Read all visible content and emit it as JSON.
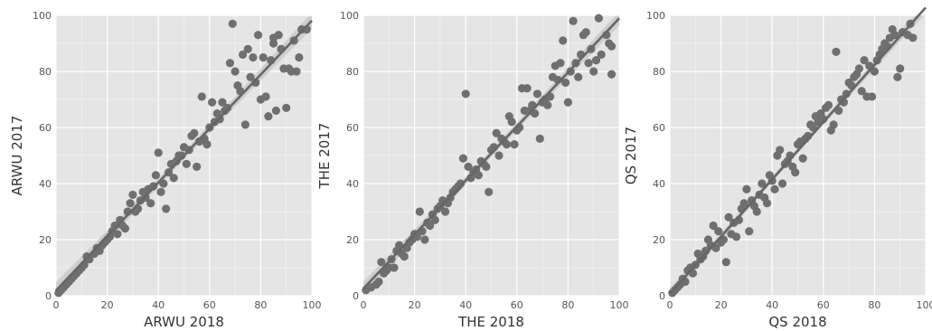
{
  "style": {
    "panel_bg": "#e5e5e5",
    "grid": "#ffffff",
    "point": "#6f6f6f",
    "line": "#666666",
    "band": "#c8c8c8"
  },
  "chart_data": [
    {
      "type": "scatter",
      "title": "",
      "xlabel": "ARWU 2018",
      "ylabel": "ARWU 2017",
      "xlim": [
        0,
        100
      ],
      "ylim": [
        0,
        100
      ],
      "xticks": [
        "0",
        "20",
        "40",
        "60",
        "80",
        "100"
      ],
      "yticks": [
        "0",
        "20",
        "40",
        "60",
        "80",
        "100"
      ],
      "grid": true,
      "regression_line": true,
      "points": [
        [
          1,
          1
        ],
        [
          2,
          2
        ],
        [
          3,
          3
        ],
        [
          4,
          4
        ],
        [
          5,
          5
        ],
        [
          6,
          6
        ],
        [
          7,
          7
        ],
        [
          8,
          8
        ],
        [
          9,
          9
        ],
        [
          10,
          10
        ],
        [
          11,
          11
        ],
        [
          12,
          14
        ],
        [
          13,
          13
        ],
        [
          15,
          15
        ],
        [
          16,
          17
        ],
        [
          17,
          16
        ],
        [
          18,
          18
        ],
        [
          19,
          19
        ],
        [
          20,
          20
        ],
        [
          21,
          21
        ],
        [
          22,
          23
        ],
        [
          23,
          25
        ],
        [
          24,
          22
        ],
        [
          25,
          27
        ],
        [
          26,
          25
        ],
        [
          27,
          24
        ],
        [
          28,
          30
        ],
        [
          29,
          33
        ],
        [
          30,
          36
        ],
        [
          31,
          30
        ],
        [
          32,
          31
        ],
        [
          33,
          34
        ],
        [
          34,
          37
        ],
        [
          35,
          35
        ],
        [
          36,
          38
        ],
        [
          37,
          33
        ],
        [
          38,
          39
        ],
        [
          39,
          43
        ],
        [
          40,
          51
        ],
        [
          41,
          37
        ],
        [
          42,
          40
        ],
        [
          43,
          31
        ],
        [
          44,
          44
        ],
        [
          45,
          47
        ],
        [
          46,
          42
        ],
        [
          47,
          48
        ],
        [
          48,
          50
        ],
        [
          49,
          50
        ],
        [
          50,
          53
        ],
        [
          51,
          47
        ],
        [
          52,
          52
        ],
        [
          53,
          57
        ],
        [
          54,
          58
        ],
        [
          55,
          46
        ],
        [
          56,
          55
        ],
        [
          57,
          71
        ],
        [
          58,
          56
        ],
        [
          59,
          54
        ],
        [
          60,
          60
        ],
        [
          61,
          69
        ],
        [
          62,
          62
        ],
        [
          63,
          65
        ],
        [
          64,
          63
        ],
        [
          65,
          69
        ],
        [
          66,
          66
        ],
        [
          67,
          67
        ],
        [
          68,
          83
        ],
        [
          69,
          97
        ],
        [
          70,
          80
        ],
        [
          71,
          75
        ],
        [
          72,
          73
        ],
        [
          73,
          86
        ],
        [
          74,
          61
        ],
        [
          75,
          88
        ],
        [
          76,
          78
        ],
        [
          77,
          85
        ],
        [
          78,
          76
        ],
        [
          79,
          93
        ],
        [
          80,
          70
        ],
        [
          81,
          85
        ],
        [
          82,
          71
        ],
        [
          83,
          64
        ],
        [
          84,
          84
        ],
        [
          85,
          92
        ],
        [
          86,
          66
        ],
        [
          87,
          93
        ],
        [
          88,
          88
        ],
        [
          89,
          81
        ],
        [
          90,
          67
        ],
        [
          91,
          81
        ],
        [
          92,
          80
        ],
        [
          93,
          91
        ],
        [
          94,
          80
        ],
        [
          95,
          85
        ],
        [
          96,
          95
        ],
        [
          98,
          95
        ],
        [
          85,
          90
        ]
      ]
    },
    {
      "type": "scatter",
      "title": "",
      "xlabel": "THE 2018",
      "ylabel": "THE 2017",
      "xlim": [
        0,
        100
      ],
      "ylim": [
        0,
        100
      ],
      "xticks": [
        "0",
        "20",
        "40",
        "60",
        "80",
        "100"
      ],
      "yticks": [
        "0",
        "20",
        "40",
        "60",
        "80",
        "100"
      ],
      "grid": true,
      "regression_line": true,
      "points": [
        [
          1,
          2
        ],
        [
          3,
          3
        ],
        [
          5,
          4
        ],
        [
          6,
          5
        ],
        [
          7,
          12
        ],
        [
          8,
          8
        ],
        [
          9,
          9
        ],
        [
          10,
          10
        ],
        [
          11,
          13
        ],
        [
          12,
          10
        ],
        [
          13,
          16
        ],
        [
          14,
          18
        ],
        [
          15,
          15
        ],
        [
          16,
          14
        ],
        [
          17,
          17
        ],
        [
          18,
          19
        ],
        [
          19,
          20
        ],
        [
          20,
          22
        ],
        [
          21,
          21
        ],
        [
          22,
          30
        ],
        [
          23,
          23
        ],
        [
          24,
          20
        ],
        [
          25,
          26
        ],
        [
          26,
          25
        ],
        [
          27,
          29
        ],
        [
          28,
          27
        ],
        [
          29,
          31
        ],
        [
          30,
          32
        ],
        [
          31,
          34
        ],
        [
          32,
          30
        ],
        [
          33,
          33
        ],
        [
          34,
          35
        ],
        [
          35,
          37
        ],
        [
          36,
          38
        ],
        [
          37,
          39
        ],
        [
          38,
          40
        ],
        [
          39,
          49
        ],
        [
          40,
          72
        ],
        [
          41,
          46
        ],
        [
          42,
          42
        ],
        [
          43,
          44
        ],
        [
          44,
          45
        ],
        [
          45,
          43
        ],
        [
          46,
          48
        ],
        [
          47,
          47
        ],
        [
          48,
          46
        ],
        [
          49,
          37
        ],
        [
          50,
          52
        ],
        [
          51,
          53
        ],
        [
          52,
          58
        ],
        [
          53,
          50
        ],
        [
          54,
          56
        ],
        [
          55,
          55
        ],
        [
          56,
          54
        ],
        [
          57,
          64
        ],
        [
          58,
          62
        ],
        [
          59,
          54
        ],
        [
          60,
          59
        ],
        [
          61,
          60
        ],
        [
          62,
          74
        ],
        [
          63,
          66
        ],
        [
          64,
          74
        ],
        [
          65,
          66
        ],
        [
          66,
          68
        ],
        [
          67,
          65
        ],
        [
          68,
          72
        ],
        [
          69,
          56
        ],
        [
          70,
          69
        ],
        [
          71,
          70
        ],
        [
          72,
          68
        ],
        [
          73,
          71
        ],
        [
          74,
          78
        ],
        [
          75,
          82
        ],
        [
          76,
          77
        ],
        [
          77,
          83
        ],
        [
          78,
          91
        ],
        [
          79,
          76
        ],
        [
          80,
          69
        ],
        [
          81,
          80
        ],
        [
          82,
          98
        ],
        [
          83,
          83
        ],
        [
          84,
          78
        ],
        [
          85,
          86
        ],
        [
          86,
          93
        ],
        [
          87,
          94
        ],
        [
          88,
          83
        ],
        [
          89,
          88
        ],
        [
          90,
          80
        ],
        [
          91,
          84
        ],
        [
          92,
          99
        ],
        [
          93,
          86
        ],
        [
          95,
          93
        ],
        [
          96,
          90
        ],
        [
          97,
          89
        ],
        [
          97,
          79
        ]
      ]
    },
    {
      "type": "scatter",
      "title": "",
      "xlabel": "QS 2018",
      "ylabel": "QS 2017",
      "xlim": [
        0,
        100
      ],
      "ylim": [
        0,
        100
      ],
      "xticks": [
        "0",
        "20",
        "40",
        "60",
        "80",
        "100"
      ],
      "yticks": [
        "0",
        "20",
        "40",
        "60",
        "80",
        "100"
      ],
      "grid": true,
      "regression_line": true,
      "points": [
        [
          1,
          1
        ],
        [
          2,
          2
        ],
        [
          3,
          3
        ],
        [
          4,
          4
        ],
        [
          5,
          6
        ],
        [
          6,
          5
        ],
        [
          7,
          9
        ],
        [
          8,
          10
        ],
        [
          9,
          8
        ],
        [
          10,
          11
        ],
        [
          11,
          15
        ],
        [
          12,
          13
        ],
        [
          13,
          14
        ],
        [
          14,
          16
        ],
        [
          15,
          20
        ],
        [
          16,
          18
        ],
        [
          17,
          25
        ],
        [
          18,
          17
        ],
        [
          19,
          23
        ],
        [
          20,
          19
        ],
        [
          21,
          20
        ],
        [
          22,
          12
        ],
        [
          23,
          28
        ],
        [
          24,
          22
        ],
        [
          25,
          26
        ],
        [
          26,
          21
        ],
        [
          27,
          27
        ],
        [
          28,
          31
        ],
        [
          29,
          33
        ],
        [
          30,
          38
        ],
        [
          31,
          23
        ],
        [
          32,
          34
        ],
        [
          33,
          32
        ],
        [
          34,
          30
        ],
        [
          35,
          36
        ],
        [
          36,
          40
        ],
        [
          37,
          35
        ],
        [
          38,
          33
        ],
        [
          39,
          43
        ],
        [
          40,
          41
        ],
        [
          41,
          38
        ],
        [
          42,
          50
        ],
        [
          43,
          52
        ],
        [
          44,
          40
        ],
        [
          45,
          47
        ],
        [
          46,
          48
        ],
        [
          47,
          50
        ],
        [
          48,
          46
        ],
        [
          49,
          44
        ],
        [
          50,
          54
        ],
        [
          51,
          55
        ],
        [
          52,
          49
        ],
        [
          53,
          56
        ],
        [
          54,
          57
        ],
        [
          55,
          61
        ],
        [
          56,
          60
        ],
        [
          57,
          64
        ],
        [
          58,
          62
        ],
        [
          59,
          65
        ],
        [
          60,
          63
        ],
        [
          61,
          67
        ],
        [
          62,
          68
        ],
        [
          63,
          59
        ],
        [
          64,
          61
        ],
        [
          65,
          87
        ],
        [
          66,
          66
        ],
        [
          67,
          70
        ],
        [
          68,
          69
        ],
        [
          69,
          72
        ],
        [
          70,
          76
        ],
        [
          71,
          75
        ],
        [
          72,
          78
        ],
        [
          73,
          79
        ],
        [
          74,
          81
        ],
        [
          75,
          73
        ],
        [
          76,
          84
        ],
        [
          77,
          71
        ],
        [
          78,
          82
        ],
        [
          79,
          71
        ],
        [
          80,
          80
        ],
        [
          81,
          84
        ],
        [
          82,
          86
        ],
        [
          83,
          88
        ],
        [
          84,
          90
        ],
        [
          85,
          89
        ],
        [
          86,
          92
        ],
        [
          87,
          95
        ],
        [
          88,
          93
        ],
        [
          89,
          78
        ],
        [
          90,
          81
        ],
        [
          91,
          94
        ],
        [
          93,
          93
        ],
        [
          94,
          97
        ],
        [
          95,
          92
        ]
      ]
    }
  ]
}
